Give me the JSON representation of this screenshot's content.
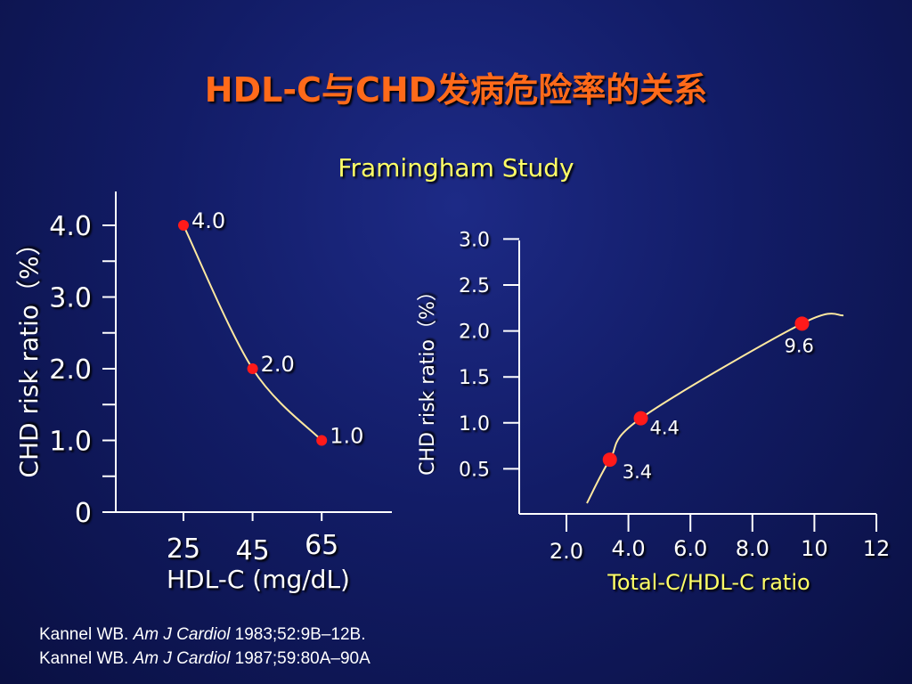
{
  "slide": {
    "title": "HDL-C与CHD发病危险率的关系",
    "subtitle": "Framingham Study",
    "references": [
      {
        "author": "Kannel WB. ",
        "journal": "Am J Cardiol",
        "citation": " 1983;52:9B–12B."
      },
      {
        "author": "Kannel WB. ",
        "journal": "Am J Cardiol",
        "citation": " 1987;59:80A–90A"
      }
    ]
  },
  "colors": {
    "background": "#121c66",
    "title": "#ff6a1a",
    "subtitle": "#ffff66",
    "axis": "#ffffff",
    "point": "#ff1a1a",
    "curve": "#ffe9a0",
    "xlabel_right": "#ffff66"
  },
  "chart_data": [
    {
      "type": "line",
      "xlabel": "HDL-C (mg/dL)",
      "ylabel": "CHD risk ratio（%）",
      "x": [
        25,
        45,
        65
      ],
      "xticks": [
        "25",
        "45",
        "65"
      ],
      "y": [
        4.0,
        2.0,
        1.0
      ],
      "point_labels": [
        "4.0",
        "2.0",
        "1.0"
      ],
      "yticks": [
        "0",
        "1.0",
        "2.0",
        "3.0",
        "4.0"
      ],
      "ylim": [
        0,
        4.0
      ],
      "grid": false
    },
    {
      "type": "line",
      "xlabel": "Total-C/HDL-C ratio",
      "ylabel": "CHD risk ratio（%）",
      "x": [
        3.4,
        4.4,
        9.6
      ],
      "y": [
        0.6,
        1.05,
        2.08
      ],
      "point_labels": [
        "3.4",
        "4.4",
        "9.6"
      ],
      "xticks": [
        "2.0",
        "4.0",
        "6.0",
        "8.0",
        "10",
        "12"
      ],
      "yticks": [
        "0.5",
        "1.0",
        "1.5",
        "2.0",
        "2.5",
        "3.0"
      ],
      "xlim": [
        2.0,
        12
      ],
      "ylim": [
        0.5,
        3.0
      ],
      "grid": false
    }
  ]
}
